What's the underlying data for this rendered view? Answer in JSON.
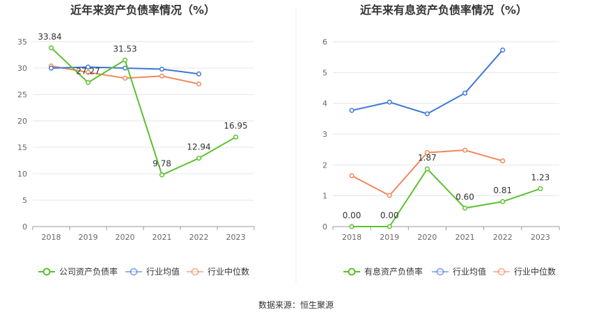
{
  "source": "数据来源：恒生聚源",
  "chart_data": [
    {
      "type": "line",
      "title": "近年来资产负债率情况（%）",
      "categories": [
        "2018",
        "2019",
        "2020",
        "2021",
        "2022",
        "2023"
      ],
      "ylim": [
        0,
        35
      ],
      "yticks": [
        "0",
        "5",
        "10",
        "15",
        "20",
        "25",
        "30",
        "35"
      ],
      "grid": true,
      "legend_position": "bottom",
      "series": [
        {
          "name": "公司资产负债率",
          "color": "#5ac12b",
          "values": [
            33.84,
            27.27,
            31.53,
            9.78,
            12.94,
            16.95
          ],
          "labels": [
            "33.84",
            "27.27",
            "31.53",
            "9.78",
            "12.94",
            "16.95"
          ]
        },
        {
          "name": "行业均值",
          "color": "#3d77d6",
          "values": [
            30.0,
            30.2,
            30.0,
            29.8,
            28.9,
            null
          ]
        },
        {
          "name": "行业中位数",
          "color": "#f0875a",
          "values": [
            30.4,
            29.2,
            28.1,
            28.5,
            27.0,
            null
          ]
        }
      ]
    },
    {
      "type": "line",
      "title": "近年来有息资产负债率情况（%）",
      "categories": [
        "2018",
        "2019",
        "2020",
        "2021",
        "2022",
        "2023"
      ],
      "ylim": [
        0,
        6
      ],
      "yticks": [
        "0",
        "1",
        "2",
        "3",
        "4",
        "5",
        "6"
      ],
      "grid": true,
      "legend_position": "bottom",
      "series": [
        {
          "name": "有息资产负债率",
          "color": "#5ac12b",
          "values": [
            0.0,
            0.0,
            1.87,
            0.6,
            0.81,
            1.23
          ],
          "labels": [
            "0.00",
            "0.00",
            "1.87",
            "0.60",
            "0.81",
            "1.23"
          ]
        },
        {
          "name": "行业均值",
          "color": "#3d77d6",
          "values": [
            3.77,
            4.04,
            3.66,
            4.33,
            5.73,
            null
          ]
        },
        {
          "name": "行业中位数",
          "color": "#f0875a",
          "values": [
            1.65,
            1.01,
            2.4,
            2.48,
            2.13,
            null
          ]
        }
      ]
    }
  ]
}
